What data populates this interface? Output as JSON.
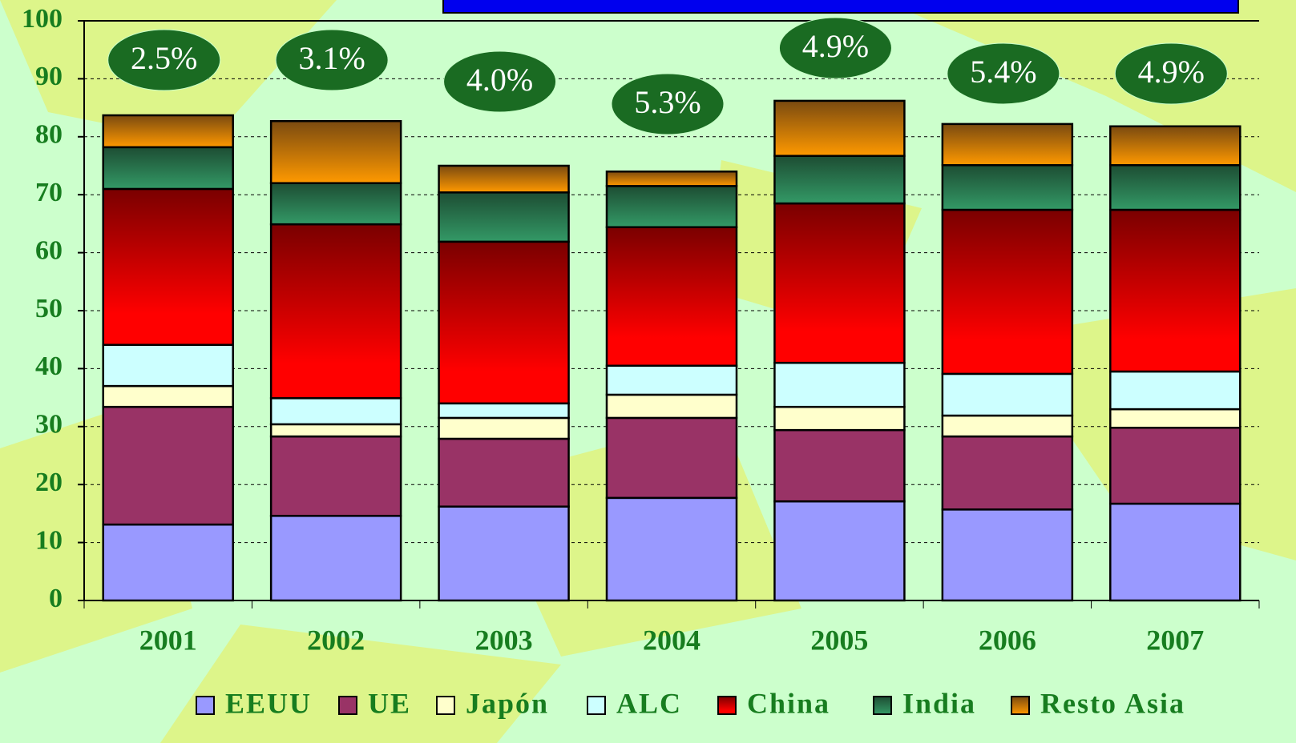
{
  "chart_data": {
    "type": "stacked_bar",
    "categories": [
      "2001",
      "2002",
      "2003",
      "2004",
      "2005",
      "2006",
      "2007"
    ],
    "series": [
      {
        "name": "EEUU",
        "color": "#9999ff",
        "values": [
          13.1,
          14.6,
          16.2,
          17.7,
          17.1,
          15.7,
          16.7
        ]
      },
      {
        "name": "UE",
        "color": "#993366",
        "values": [
          20.3,
          13.7,
          11.7,
          13.8,
          12.3,
          12.6,
          13.1
        ]
      },
      {
        "name": "Japón",
        "color": "#ffffcc",
        "values": [
          3.6,
          2.1,
          3.6,
          4.0,
          4.0,
          3.6,
          3.2
        ]
      },
      {
        "name": "ALC",
        "color": "#ccffff",
        "values": [
          7.1,
          4.5,
          2.5,
          5.0,
          7.6,
          7.2,
          6.5
        ]
      },
      {
        "name": "China",
        "color": "#ff0000",
        "values": [
          26.9,
          30.0,
          27.9,
          23.9,
          27.5,
          28.3,
          27.9
        ]
      },
      {
        "name": "India",
        "color": "#339966",
        "values": [
          7.2,
          7.1,
          8.5,
          7.1,
          8.2,
          7.7,
          7.7
        ]
      },
      {
        "name": "Resto Asia",
        "color": "#ff9900",
        "values": [
          5.5,
          10.7,
          4.6,
          2.5,
          9.5,
          7.1,
          6.7
        ]
      }
    ],
    "annotations": [
      "2.5%",
      "3.1%",
      "4.0%",
      "5.3%",
      "4.9%",
      "5.4%",
      "4.9%"
    ],
    "ylim": [
      0,
      100
    ],
    "yticks": [
      0,
      10,
      20,
      30,
      40,
      50,
      60,
      70,
      80,
      90,
      100
    ],
    "grid": true
  }
}
